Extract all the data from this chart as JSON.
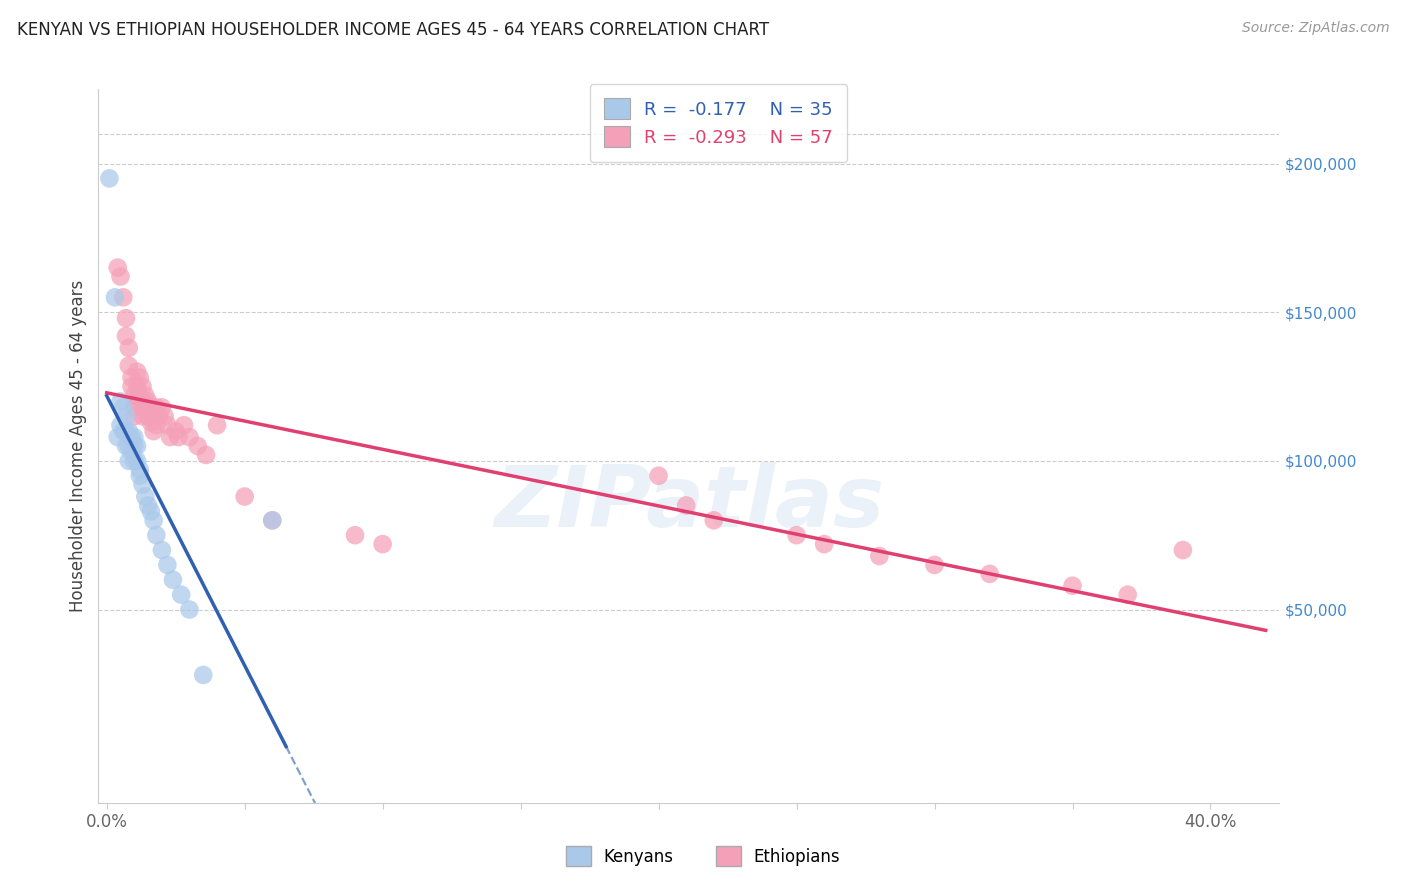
{
  "title": "KENYAN VS ETHIOPIAN HOUSEHOLDER INCOME AGES 45 - 64 YEARS CORRELATION CHART",
  "source": "Source: ZipAtlas.com",
  "xlabel_ticks": [
    "0.0%",
    "",
    "",
    "",
    "",
    "",
    "",
    "",
    "40.0%"
  ],
  "xlabel_vals": [
    0.0,
    0.05,
    0.1,
    0.15,
    0.2,
    0.25,
    0.3,
    0.35,
    0.4
  ],
  "ylabel": "Householder Income Ages 45 - 64 years",
  "ylabel_ticks": [
    "$50,000",
    "$100,000",
    "$150,000",
    "$200,000"
  ],
  "ylabel_vals": [
    50000,
    100000,
    150000,
    200000
  ],
  "xlim": [
    -0.003,
    0.425
  ],
  "ylim": [
    -15000,
    225000
  ],
  "kenyan_R": -0.177,
  "kenyan_N": 35,
  "ethiopian_R": -0.293,
  "ethiopian_N": 57,
  "kenyan_color": "#aac8ea",
  "ethiopian_color": "#f4a0b8",
  "kenyan_line_color": "#3060b0",
  "ethiopian_line_color": "#e04070",
  "background_color": "#ffffff",
  "grid_color": "#cccccc",
  "kenyan_x": [
    0.001,
    0.003,
    0.004,
    0.005,
    0.005,
    0.006,
    0.006,
    0.007,
    0.007,
    0.007,
    0.008,
    0.008,
    0.008,
    0.009,
    0.009,
    0.01,
    0.01,
    0.01,
    0.011,
    0.011,
    0.012,
    0.012,
    0.013,
    0.014,
    0.015,
    0.016,
    0.017,
    0.018,
    0.02,
    0.022,
    0.024,
    0.027,
    0.03,
    0.035,
    0.06
  ],
  "kenyan_y": [
    195000,
    155000,
    108000,
    120000,
    112000,
    118000,
    110000,
    115000,
    110000,
    105000,
    110000,
    105000,
    100000,
    108000,
    103000,
    108000,
    105000,
    100000,
    105000,
    100000,
    97000,
    95000,
    92000,
    88000,
    85000,
    83000,
    80000,
    75000,
    70000,
    65000,
    60000,
    55000,
    50000,
    28000,
    80000
  ],
  "ethiopian_x": [
    0.004,
    0.005,
    0.006,
    0.007,
    0.007,
    0.008,
    0.008,
    0.009,
    0.009,
    0.01,
    0.01,
    0.01,
    0.011,
    0.011,
    0.011,
    0.012,
    0.012,
    0.013,
    0.013,
    0.013,
    0.014,
    0.014,
    0.015,
    0.015,
    0.016,
    0.016,
    0.017,
    0.017,
    0.018,
    0.018,
    0.019,
    0.02,
    0.021,
    0.022,
    0.023,
    0.025,
    0.026,
    0.028,
    0.03,
    0.033,
    0.036,
    0.04,
    0.05,
    0.06,
    0.09,
    0.1,
    0.2,
    0.21,
    0.22,
    0.25,
    0.26,
    0.28,
    0.3,
    0.32,
    0.35,
    0.37,
    0.39
  ],
  "ethiopian_y": [
    165000,
    162000,
    155000,
    148000,
    142000,
    138000,
    132000,
    128000,
    125000,
    122000,
    118000,
    115000,
    130000,
    125000,
    120000,
    128000,
    122000,
    125000,
    120000,
    115000,
    122000,
    118000,
    120000,
    115000,
    118000,
    113000,
    115000,
    110000,
    118000,
    112000,
    115000,
    118000,
    115000,
    112000,
    108000,
    110000,
    108000,
    112000,
    108000,
    105000,
    102000,
    112000,
    88000,
    80000,
    75000,
    72000,
    95000,
    85000,
    80000,
    75000,
    72000,
    68000,
    65000,
    62000,
    58000,
    55000,
    70000
  ]
}
